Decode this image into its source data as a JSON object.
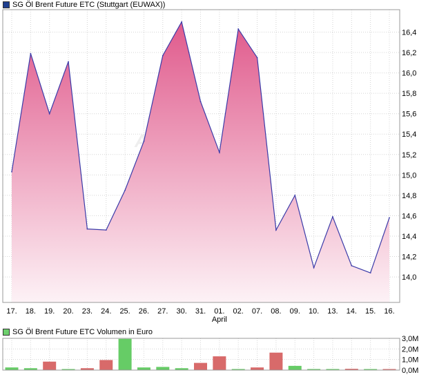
{
  "price_legend": "SG Öl Brent Future ETC (Stuttgart (EUWAX))",
  "volume_legend": "SG Öl Brent Future ETC Volumen in Euro",
  "colors": {
    "price_swatch": "#1f3f8f",
    "volume_swatch": "#6ccf6c",
    "line": "#3a3aa8",
    "fill_top": "#e05a8c",
    "fill_bottom": "#fdf2f6",
    "vol_up": "#66cc66",
    "vol_down": "#d86a6a",
    "grid": "#d4d4d4"
  },
  "watermark": "A",
  "chart_data": [
    {
      "type": "area",
      "title": "SG Öl Brent Future ETC (Stuttgart (EUWAX))",
      "x": [
        "17.",
        "18.",
        "19.",
        "20.",
        "23.",
        "24.",
        "25.",
        "26.",
        "27.",
        "30.",
        "31.",
        "01.",
        "02.",
        "07.",
        "08.",
        "09.",
        "10.",
        "13.",
        "14.",
        "15.",
        "16."
      ],
      "x_sublabels": [
        {
          "index": 11,
          "label": "April"
        }
      ],
      "series": [
        {
          "values": [
            15.03,
            16.19,
            15.6,
            16.11,
            14.47,
            14.46,
            14.85,
            15.33,
            16.17,
            16.5,
            15.72,
            15.22,
            16.43,
            16.15,
            14.46,
            14.8,
            14.09,
            14.59,
            14.11,
            14.04,
            14.58
          ]
        }
      ],
      "ylim": [
        13.75,
        16.62
      ],
      "yticks": [
        14.0,
        14.2,
        14.4,
        14.6,
        14.8,
        15.0,
        15.2,
        15.4,
        15.6,
        15.8,
        16.0,
        16.2,
        16.4
      ],
      "ytick_labels": [
        "14,0",
        "14,2",
        "14,4",
        "14,6",
        "14,8",
        "15,0",
        "15,2",
        "15,4",
        "15,6",
        "15,8",
        "16,0",
        "16,2",
        "16,4"
      ],
      "grid": true,
      "legend_position": "top-left"
    },
    {
      "type": "bar",
      "title": "SG Öl Brent Future ETC Volumen in Euro",
      "categories": [
        "17.",
        "18.",
        "19.",
        "20.",
        "23.",
        "24.",
        "25.",
        "26.",
        "27.",
        "30.",
        "31.",
        "01.",
        "02.",
        "07.",
        "08.",
        "09.",
        "10.",
        "13.",
        "14.",
        "15.",
        "16."
      ],
      "values": [
        0.25,
        0.18,
        0.8,
        0.05,
        0.18,
        0.95,
        2.95,
        0.25,
        0.3,
        0.18,
        0.68,
        1.3,
        0.1,
        0.25,
        1.65,
        0.4,
        0.1,
        0.1,
        0.12,
        0.06,
        0.08
      ],
      "direction": [
        "up",
        "up",
        "down",
        "up",
        "down",
        "down",
        "up",
        "up",
        "up",
        "up",
        "down",
        "down",
        "up",
        "down",
        "down",
        "up",
        "up",
        "up",
        "down",
        "up",
        "down"
      ],
      "ylim": [
        0,
        3.0
      ],
      "yticks": [
        0,
        1,
        2,
        3
      ],
      "ytick_labels": [
        "0,0M",
        "1,0M",
        "2,0M",
        "3,0M"
      ],
      "grid": true,
      "legend_position": "top-left"
    }
  ]
}
